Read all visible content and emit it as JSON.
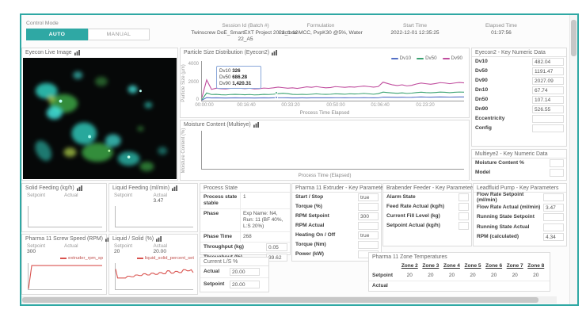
{
  "accent": "#2fa8a4",
  "header": {
    "control_mode": {
      "label": "Control Mode",
      "auto": "AUTO",
      "manual": "MANUAL"
    },
    "info": [
      {
        "label": "Session Id (Batch #)",
        "value": "Twinscrew DoE_SmartEXT Project 2022_1-12-22_A5"
      },
      {
        "label": "Formulation",
        "value": "Lactose MCC, PvpK30 @5%, Water"
      },
      {
        "label": "Start Time",
        "value": "2022-12-01 12:35:25"
      },
      {
        "label": "Elapsed Time",
        "value": "01:37:56"
      }
    ]
  },
  "eyecon_image": {
    "title": "Eyecon Live Image"
  },
  "chart_data": [
    {
      "type": "line",
      "title": "Particle Size Distribution (Eyecon2)",
      "xlabel": "Process Time Elapsed",
      "ylabel": "Particle Size (µm)",
      "ylim": [
        0,
        4400
      ],
      "y_ticks": [
        "4000",
        "2000",
        "0"
      ],
      "x_ticks": [
        "00:00:00",
        "00:16:40",
        "00:33:20",
        "00:50:00",
        "01:06:40",
        "01:23:20"
      ],
      "legend_position": "top-right",
      "grid": false,
      "series": [
        {
          "name": "Dv10",
          "color": "#5470c6",
          "values": [
            60,
            340,
            300,
            310,
            300,
            295,
            305,
            310,
            305,
            300,
            305,
            295,
            300,
            310,
            305,
            312,
            320,
            318,
            310,
            305,
            300,
            308,
            305,
            312,
            318,
            312,
            308,
            312,
            318,
            315,
            312,
            318,
            315,
            318,
            325,
            318,
            312,
            320,
            400,
            390,
            380,
            370,
            380,
            365,
            375,
            395,
            410,
            400,
            392,
            402,
            415,
            408,
            396,
            408,
            418,
            410
          ]
        },
        {
          "name": "Dv50",
          "color": "#3ba272",
          "values": [
            120,
            850,
            680,
            700,
            660,
            640,
            680,
            700,
            680,
            660,
            680,
            640,
            660,
            700,
            680,
            720,
            780,
            820,
            780,
            700,
            680,
            700,
            680,
            720,
            760,
            720,
            700,
            720,
            760,
            740,
            720,
            760,
            740,
            760,
            800,
            760,
            720,
            780,
            950,
            900,
            850,
            820,
            860,
            800,
            840,
            900,
            940,
            900,
            870,
            910,
            950,
            930,
            890,
            930,
            960,
            940
          ]
        },
        {
          "name": "Dv90",
          "color": "#c04d9e",
          "values": [
            350,
            2300,
            1250,
            1380,
            1320,
            1300,
            1360,
            1420,
            1380,
            1340,
            1380,
            1300,
            1320,
            1400,
            1360,
            1420,
            1500,
            1440,
            1380,
            1420,
            1360,
            1440,
            1540,
            1480,
            1560,
            1480,
            1420,
            1460,
            1560,
            1520,
            1480,
            1540,
            1500,
            1560,
            1620,
            1560,
            1500,
            1560,
            2050,
            1900,
            1750,
            1680,
            1760,
            1640,
            1700,
            1850,
            1950,
            1880,
            1820,
            1900,
            2000,
            1960,
            1880,
            1960,
            2020,
            1980
          ]
        }
      ],
      "tooltip": {
        "rows": [
          {
            "label": "Dv10",
            "value": "326"
          },
          {
            "label": "Dv50",
            "value": "686.28"
          },
          {
            "label": "Dv90",
            "value": "1,420.31"
          }
        ]
      }
    },
    {
      "type": "line",
      "title": "Moisture Content (Multieye)",
      "xlabel": "Process Time (Elapsed)",
      "ylabel": "Moisture Content (%)",
      "ylim": [
        0,
        1
      ],
      "series": []
    },
    {
      "type": "line",
      "title": "Solid Feeding (kg/h)",
      "setpoint_label": "Setpoint",
      "actual_label": "Actual",
      "setpoint": "",
      "actual": "",
      "ylim": [
        0,
        1
      ],
      "series": []
    },
    {
      "type": "line",
      "title": "Liquid Feeding (ml/min)",
      "setpoint_label": "Setpoint",
      "actual_label": "Actual",
      "setpoint": "",
      "actual": "3.47",
      "ylim": [
        0,
        1
      ],
      "series": []
    },
    {
      "type": "line",
      "title": "Pharma 11 Screw Speed (RPM)",
      "setpoint_label": "Setpoint",
      "actual_label": "Actual",
      "setpoint": "300",
      "actual": "",
      "ylim": [
        0,
        330
      ],
      "series": [
        {
          "name": "extruder_rpm_sp",
          "color": "#d9534f",
          "values": [
            0,
            300,
            300,
            300,
            300,
            300,
            300,
            300,
            300,
            300,
            300,
            300,
            300,
            300,
            300,
            300,
            300,
            300,
            300,
            300,
            300,
            300,
            300,
            300
          ]
        }
      ]
    },
    {
      "type": "line",
      "title": "Liquid / Solid (%)",
      "setpoint_label": "Setpoint",
      "actual_label": "Actual",
      "setpoint": "20",
      "actual": "20.00",
      "ylim": [
        0,
        22
      ],
      "series": [
        {
          "name": "liquid_solid_percent_set",
          "color": "#d9534f",
          "values": [
            17,
            9.5,
            9.5,
            9.5,
            9.5,
            9.5,
            11,
            11,
            10.5,
            10.5,
            12,
            12,
            11.5,
            11.5,
            13,
            13,
            12,
            12,
            13.5,
            13.5,
            12.5,
            12.5,
            14,
            14,
            13,
            13,
            15.5,
            15.5,
            13.5,
            13.5,
            15,
            15,
            14,
            14,
            16.5,
            16.5,
            15.5,
            15.5,
            16.5,
            14
          ]
        }
      ]
    }
  ],
  "panels": {
    "eyecon2": {
      "title": "Eyecon2 - Key Numeric Data",
      "rows": [
        {
          "label": "Dv10",
          "value": "482.04"
        },
        {
          "label": "Dv50",
          "value": "1191.47"
        },
        {
          "label": "Dv90",
          "value": "2027.09"
        },
        {
          "label": "Dn10",
          "value": "67.74"
        },
        {
          "label": "Dn50",
          "value": "107.14"
        },
        {
          "label": "Dn90",
          "value": "526.55"
        },
        {
          "label": "Eccentricity",
          "value": ""
        },
        {
          "label": "Config",
          "value": ""
        }
      ]
    },
    "multieye2": {
      "title": "Multieye2 - Key Numeric Data",
      "rows": [
        {
          "label": "Moisture Content %",
          "value": ""
        },
        {
          "label": "Model",
          "value": ""
        }
      ]
    },
    "process_state": {
      "title": "Process State",
      "rows": [
        {
          "label": "Process state stable",
          "value": "1"
        },
        {
          "label": "Phase",
          "value": "Exp Name: N4, Run: 11 (BF 40%, L:S 20%)"
        },
        {
          "label": "Phase Time",
          "value": "268"
        },
        {
          "label": "Throughput (kg)",
          "value": "0.05"
        },
        {
          "label": "Throughput (%)",
          "value": "39.62"
        }
      ]
    },
    "current_ls": {
      "title": "Current L/S %",
      "rows": [
        {
          "label": "Actual",
          "value": "20.00"
        },
        {
          "label": "Setpoint",
          "value": "20.00"
        }
      ]
    },
    "extruder": {
      "title": "Pharma 11 Extruder - Key Parameters",
      "rows": [
        {
          "label": "Start / Stop",
          "value": "true"
        },
        {
          "label": "Torque (%)",
          "value": ""
        },
        {
          "label": "RPM Setpoint",
          "value": "300"
        },
        {
          "label": "RPM Actual",
          "value": ""
        },
        {
          "label": "Heating On / Off",
          "value": "true"
        },
        {
          "label": "Torque (Nm)",
          "value": ""
        },
        {
          "label": "Power (kW)",
          "value": ""
        }
      ]
    },
    "brabender": {
      "title": "Brabender Feeder - Key Parameters",
      "rows": [
        {
          "label": "Alarm State",
          "value": ""
        },
        {
          "label": "Feed Rate Actual (kg/h)",
          "value": ""
        },
        {
          "label": "Current Fill Level (kg)",
          "value": ""
        },
        {
          "label": "Setpoint Actual (kg/h)",
          "value": ""
        }
      ]
    },
    "leadfluid": {
      "title": "Leadfluid Pump - Key Parameters",
      "rows": [
        {
          "label": "Flow Rate Setpoint (ml/min)",
          "value": ""
        },
        {
          "label": "Flow Rate Actual (ml/min)",
          "value": "3.47"
        },
        {
          "label": "Running State Setpoint",
          "value": ""
        },
        {
          "label": "Running State Actual",
          "value": ""
        },
        {
          "label": "RPM (calculated)",
          "value": "4.34"
        }
      ]
    },
    "zones": {
      "title": "Pharma 11 Zone Temperatures",
      "setpoint_label": "Setpoint",
      "actual_label": "Actual",
      "columns": [
        "Zone 2",
        "Zone 3",
        "Zone 4",
        "Zone 5",
        "Zone 6",
        "Zone 7",
        "Zone 8"
      ],
      "setpoint": [
        "20",
        "20",
        "20",
        "20",
        "20",
        "20",
        "20"
      ],
      "actual": [
        "",
        "",
        "",
        "",
        "",
        "",
        ""
      ]
    }
  }
}
